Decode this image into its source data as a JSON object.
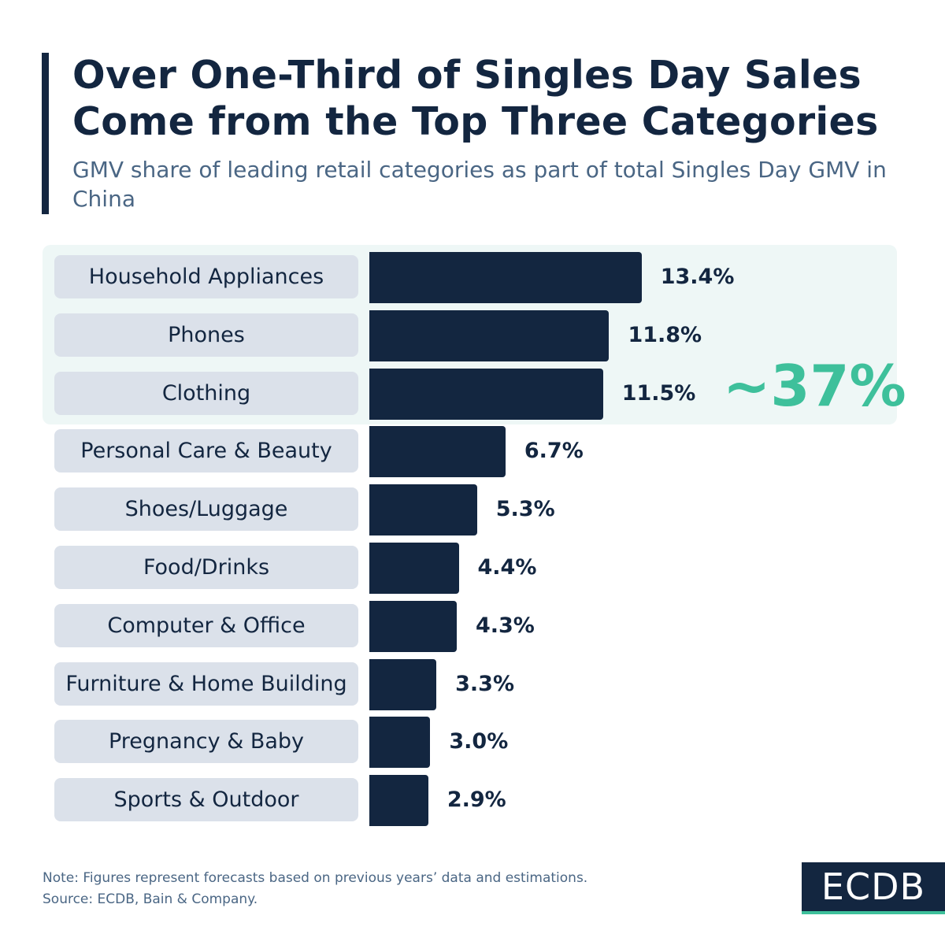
{
  "header": {
    "title_line1": "Over One-Third of Singles Day Sales",
    "title_line2": "Come from the Top Three Categories",
    "subtitle": "GMV share of leading retail categories as part of total Singles Day GMV in China"
  },
  "chart_data": {
    "type": "bar",
    "orientation": "horizontal",
    "title": "Over One-Third of Singles Day Sales Come from the Top Three Categories",
    "subtitle": "GMV share of leading retail categories as part of total Singles Day GMV in China",
    "categories": [
      "Household Appliances",
      "Phones",
      "Clothing",
      "Personal Care & Beauty",
      "Shoes/Luggage",
      "Food/Drinks",
      "Computer & Office",
      "Furniture & Home Building",
      "Pregnancy & Baby",
      "Sports & Outdoor"
    ],
    "values": [
      13.4,
      11.8,
      11.5,
      6.7,
      5.3,
      4.4,
      4.3,
      3.3,
      3.0,
      2.9
    ],
    "value_labels": [
      "13.4%",
      "11.8%",
      "11.5%",
      "6.7%",
      "5.3%",
      "4.4%",
      "4.3%",
      "3.3%",
      "3.0%",
      "2.9%"
    ],
    "unit": "%",
    "grid": false,
    "highlight": {
      "categories": [
        "Household Appliances",
        "Phones",
        "Clothing"
      ],
      "annotation": "~37%"
    },
    "colors": {
      "bar": "#132640",
      "label_bg": "#dbe1ea",
      "highlight_bg": "#eef7f6",
      "annotation": "#3ec09b"
    }
  },
  "footer": {
    "note": "Note: Figures represent forecasts based on previous years’ data and estimations.",
    "source": "Source: ECDB, Bain & Company.",
    "logo": "ECDB"
  }
}
